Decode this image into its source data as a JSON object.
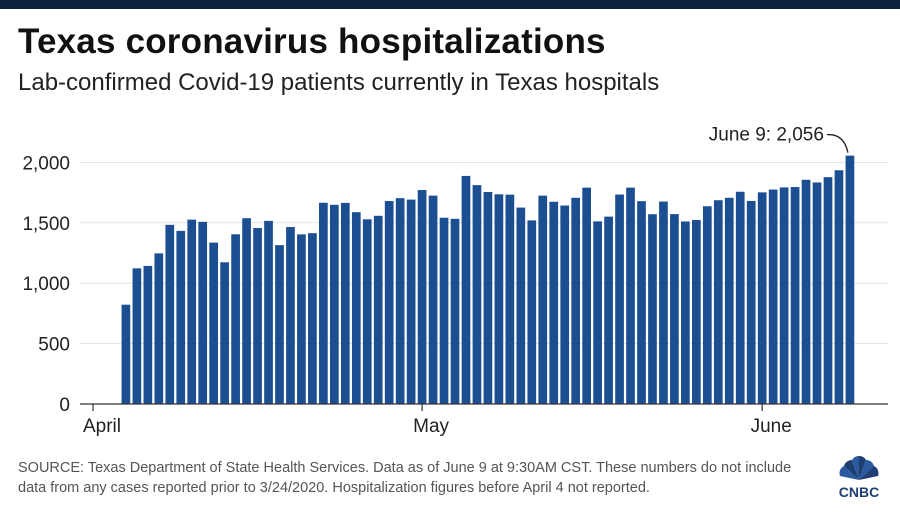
{
  "title": "Texas coronavirus hospitalizations",
  "subtitle": "Lab-confirmed Covid-19 patients currently in Texas hospitals",
  "source": "SOURCE: Texas Department of State Health Services. Data as of June 9 at 9:30AM CST. These numbers do not include data from any cases reported prior to 3/24/2020. Hospitalization figures before April 4 not reported.",
  "logo": {
    "name": "CNBC",
    "text": "CNBC"
  },
  "colors": {
    "bar": "#1b4f91",
    "top_bar": "#0a2240",
    "axis": "#333333",
    "grid": "#e3e3e3"
  },
  "chart_data": {
    "type": "bar",
    "title": "Texas coronavirus hospitalizations",
    "subtitle": "Lab-confirmed Covid-19 patients currently in Texas hospitals",
    "xlabel": "",
    "ylabel": "",
    "ylim": [
      0,
      2200
    ],
    "yticks": [
      0,
      500,
      1000,
      1500,
      2000
    ],
    "ytick_labels": [
      "0",
      "500",
      "1,000",
      "1,500",
      "2,000"
    ],
    "grid": true,
    "x_start": "April 1",
    "x_month_labels": [
      {
        "label": "April",
        "day_index": 0
      },
      {
        "label": "May",
        "day_index": 30
      },
      {
        "label": "June",
        "day_index": 61
      }
    ],
    "first_bar_day_index": 3,
    "values": [
      822,
      1123,
      1143,
      1247,
      1483,
      1433,
      1526,
      1508,
      1336,
      1173,
      1405,
      1538,
      1457,
      1516,
      1315,
      1465,
      1404,
      1414,
      1666,
      1649,
      1665,
      1588,
      1529,
      1558,
      1680,
      1704,
      1692,
      1771,
      1725,
      1542,
      1533,
      1888,
      1812,
      1755,
      1736,
      1733,
      1626,
      1520,
      1725,
      1674,
      1643,
      1707,
      1791,
      1512,
      1551,
      1734,
      1791,
      1679,
      1571,
      1676,
      1572,
      1511,
      1523,
      1637,
      1687,
      1707,
      1757,
      1681,
      1752,
      1775,
      1793,
      1796,
      1856,
      1834,
      1878,
      1935,
      2056
    ],
    "annotation": {
      "label": "June 9: 2,056",
      "value": 2056
    }
  }
}
